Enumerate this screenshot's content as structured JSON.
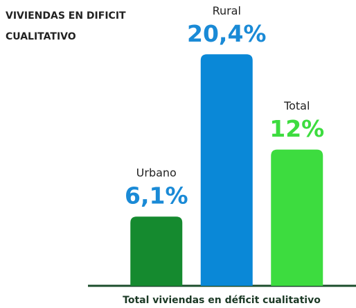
{
  "chart_data": {
    "type": "bar",
    "title": "VIVIENDAS EN DIFICIT CUALITATIVO",
    "x_label": "Total viviendas en déficit cualitativo",
    "categories": [
      "Urbano",
      "Rural",
      "Total"
    ],
    "values": [
      6.1,
      20.4,
      12
    ],
    "value_labels": [
      "6,1%",
      "20,4%",
      "12%"
    ],
    "colors": [
      "#158a2f",
      "#0a88d7",
      "#3ddc3f"
    ],
    "value_label_colors": [
      "#1a8ad6",
      "#1a8ad6",
      "#3ddc3f"
    ],
    "ylim": [
      0,
      25
    ]
  }
}
